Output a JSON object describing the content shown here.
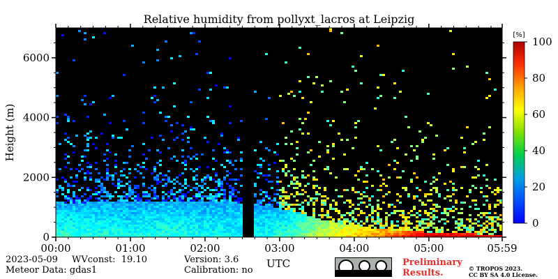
{
  "chart_data": {
    "type": "heatmap",
    "title": "Relative humidity from pollyxt_lacros at Leipzig",
    "xlabel": "UTC",
    "ylabel": "Height (m)",
    "x_ticks": [
      "00:00",
      "01:00",
      "02:00",
      "03:00",
      "04:00",
      "05:00",
      "05:59"
    ],
    "x_range_hours": [
      0,
      5.983
    ],
    "y_ticks": [
      0,
      2000,
      4000,
      6000
    ],
    "ylim": [
      0,
      7000
    ],
    "colorbar": {
      "unit_label": "[%]",
      "ticks": [
        0,
        20,
        40,
        60,
        80,
        100
      ],
      "range": [
        0,
        100
      ],
      "colormap": "jet"
    },
    "background": "#000000",
    "data_gap_hours": [
      2.5,
      2.65
    ],
    "profile": {
      "time_h": [
        0,
        0.5,
        1,
        1.5,
        2,
        2.4,
        2.8,
        3.2,
        3.6,
        4,
        4.5,
        5,
        5.5,
        5.98
      ],
      "moist_layer_top_m": [
        1150,
        1200,
        1250,
        1250,
        1250,
        1200,
        1100,
        900,
        600,
        400,
        280,
        200,
        150,
        120
      ],
      "rh_low_pct": [
        42,
        42,
        40,
        42,
        40,
        38,
        40,
        45,
        60,
        68,
        80,
        95,
        95,
        92
      ],
      "rh_high_pct": [
        30,
        30,
        28,
        30,
        28,
        30,
        28,
        35,
        50,
        60,
        70,
        85,
        85,
        85
      ]
    }
  },
  "footer": {
    "date": "2023-05-09",
    "wvconst": "WVconst:  19.10",
    "meteor": "Meteor Data: gdas1",
    "version": "Version: 3.6",
    "calibration": "Calibration: no",
    "prelim1": "Preliminary",
    "prelim2": "Results.",
    "copyright1": "© TROPOS 2023.",
    "copyright2": "CC BY SA 4.0 License.",
    "cc_badge": "cc-by-sa-icon"
  }
}
